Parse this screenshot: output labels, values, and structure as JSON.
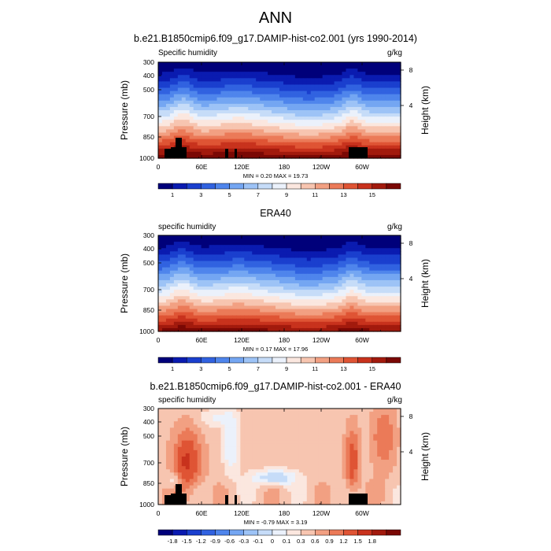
{
  "page": {
    "title": "ANN"
  },
  "chart_data": [
    {
      "type": "heatmap",
      "title": "b.e21.B1850cmip6.f09_g17.DAMIP-hist-co2.001 (yrs 1990-2014)",
      "field_label": "Specific humidity",
      "units": "g/kg",
      "ylabel": "Pressure (mb)",
      "ylabel_right": "Height (km)",
      "xticks": [
        "0",
        "60E",
        "120E",
        "180",
        "120W",
        "60W"
      ],
      "yticks": [
        "300",
        "400",
        "500",
        "700",
        "850",
        "1000"
      ],
      "yticks_right": [
        "8",
        "4"
      ],
      "ylim": [
        1000,
        300
      ],
      "min_max_text": "MIN =   0.20  MAX =  19.73",
      "colorbar_labels": [
        "1",
        "3",
        "5",
        "7",
        "9",
        "11",
        "13",
        "15"
      ],
      "colors": [
        "#00007a",
        "#0a1bb0",
        "#1a3fce",
        "#3162e0",
        "#4f85ec",
        "#74a6f2",
        "#9dc3f6",
        "#c6dcf8",
        "#ebf1fb",
        "#fbe7df",
        "#f7c5b0",
        "#f2a082",
        "#eb7a58",
        "#df5434",
        "#c8321d",
        "#a21a0d",
        "#7a0804"
      ]
    },
    {
      "type": "heatmap",
      "title": "ERA40",
      "field_label": "specific humidity",
      "units": "g/kg",
      "ylabel": "Pressure (mb)",
      "ylabel_right": "Height (km)",
      "xticks": [
        "0",
        "60E",
        "120E",
        "180",
        "120W",
        "60W"
      ],
      "yticks": [
        "300",
        "400",
        "500",
        "700",
        "850",
        "1000"
      ],
      "yticks_right": [
        "8",
        "4"
      ],
      "ylim": [
        1000,
        300
      ],
      "min_max_text": "MIN =   0.17  MAX =  17.96",
      "colorbar_labels": [
        "1",
        "3",
        "5",
        "7",
        "9",
        "11",
        "13",
        "15"
      ],
      "colors": [
        "#00007a",
        "#0a1bb0",
        "#1a3fce",
        "#3162e0",
        "#4f85ec",
        "#74a6f2",
        "#9dc3f6",
        "#c6dcf8",
        "#ebf1fb",
        "#fbe7df",
        "#f7c5b0",
        "#f2a082",
        "#eb7a58",
        "#df5434",
        "#c8321d",
        "#a21a0d",
        "#7a0804"
      ]
    },
    {
      "type": "heatmap",
      "title": "b.e21.B1850cmip6.f09_g17.DAMIP-hist-co2.001 - ERA40",
      "field_label": "specific humidity",
      "units": "g/kg",
      "ylabel": "Pressure (mb)",
      "ylabel_right": "Height (km)",
      "xticks": [
        "0",
        "60E",
        "120E",
        "180",
        "120W",
        "60W"
      ],
      "yticks": [
        "300",
        "400",
        "500",
        "700",
        "850",
        "1000"
      ],
      "yticks_right": [
        "8",
        "4"
      ],
      "ylim": [
        1000,
        300
      ],
      "min_max_text": "MIN =  -0.79  MAX =   3.19",
      "colorbar_labels": [
        "-1.8",
        "-1.5",
        "-1.2",
        "-0.9",
        "-0.6",
        "-0.3",
        "-0.1",
        "0",
        "0.1",
        "0.3",
        "0.6",
        "0.9",
        "1.2",
        "1.5",
        "1.8"
      ],
      "colors": [
        "#00007a",
        "#0a1bb0",
        "#1a3fce",
        "#3162e0",
        "#4f85ec",
        "#74a6f2",
        "#9dc3f6",
        "#c6dcf8",
        "#ebf1fb",
        "#fbe7df",
        "#f7c5b0",
        "#f2a082",
        "#eb7a58",
        "#df5434",
        "#c8321d",
        "#a21a0d",
        "#7a0804"
      ]
    }
  ]
}
